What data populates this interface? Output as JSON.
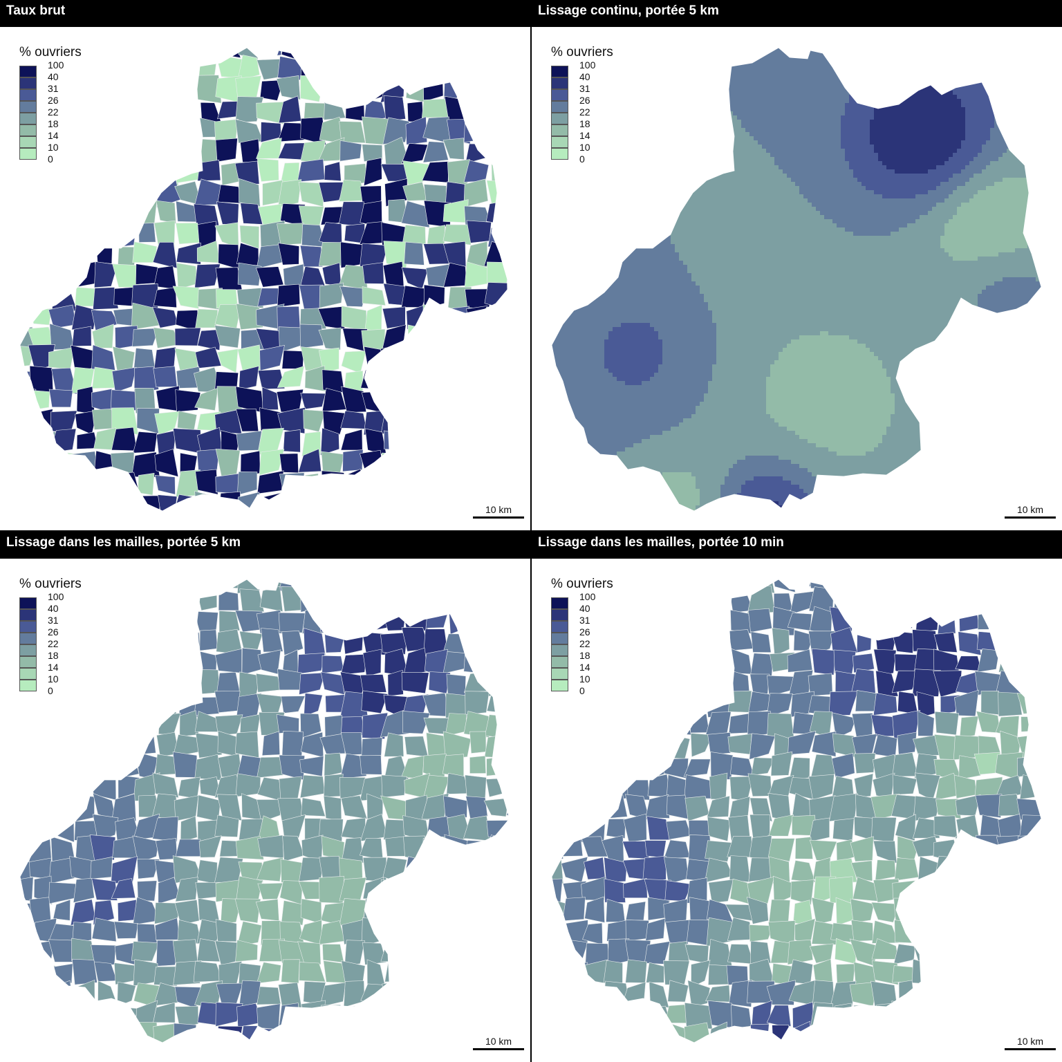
{
  "panels": [
    {
      "title": "Taux brut",
      "style": "raw"
    },
    {
      "title": "Lissage continu, portée 5 km",
      "style": "continuous"
    },
    {
      "title": "Lissage dans les mailles, portée 5 km",
      "style": "mesh5"
    },
    {
      "title": "Lissage dans les mailles, portée 10 min",
      "style": "mesh10"
    }
  ],
  "legend": {
    "title": "% ouvriers",
    "breaks": [
      "100",
      "40",
      "31",
      "26",
      "22",
      "18",
      "14",
      "10",
      "0"
    ],
    "colors": [
      "#0d1258",
      "#2b3478",
      "#4a5a96",
      "#637c9d",
      "#7d9fa2",
      "#93bba8",
      "#a8d7b5",
      "#b6ecbe"
    ]
  },
  "scalebar": {
    "label": "10 km"
  }
}
